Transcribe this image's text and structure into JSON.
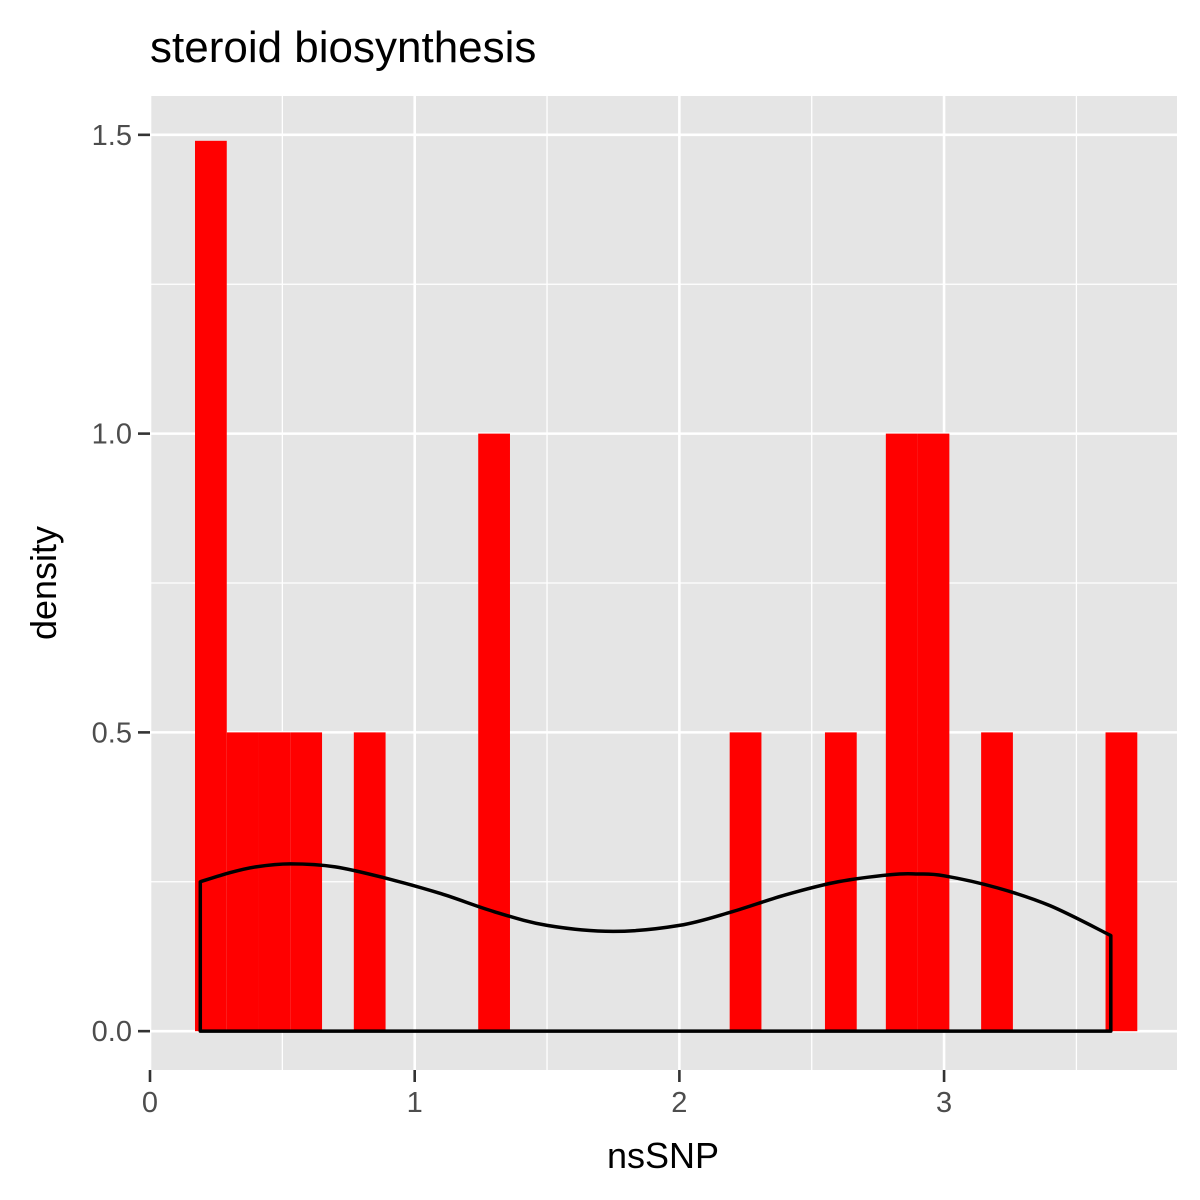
{
  "chart_data": {
    "type": "bar",
    "title": "steroid biosynthesis",
    "xlabel": "nsSNP",
    "ylabel": "density",
    "xlim": [
      0,
      3.88
    ],
    "ylim": [
      -0.065,
      1.565
    ],
    "x_ticks": [
      0,
      1,
      2,
      3
    ],
    "x_tick_labels": [
      "0",
      "1",
      "2",
      "3"
    ],
    "y_ticks": [
      0,
      0.5,
      1.0,
      1.5
    ],
    "y_tick_labels": [
      "0.0",
      "0.5",
      "1.0",
      "1.5"
    ],
    "grid": true,
    "colors": {
      "panel": "#e5e5e5",
      "grid": "#ffffff",
      "bar": "#ff0000",
      "density_line": "#000000",
      "tick_text": "#4d4d4d"
    },
    "bins": [
      {
        "x0": 0.17,
        "x1": 0.29,
        "density": 1.49
      },
      {
        "x0": 0.29,
        "x1": 0.41,
        "density": 0.5
      },
      {
        "x0": 0.41,
        "x1": 0.53,
        "density": 0.5
      },
      {
        "x0": 0.53,
        "x1": 0.65,
        "density": 0.5
      },
      {
        "x0": 0.77,
        "x1": 0.89,
        "density": 0.5
      },
      {
        "x0": 1.24,
        "x1": 1.36,
        "density": 1.0
      },
      {
        "x0": 2.19,
        "x1": 2.31,
        "density": 0.5
      },
      {
        "x0": 2.55,
        "x1": 2.67,
        "density": 0.5
      },
      {
        "x0": 2.78,
        "x1": 2.9,
        "density": 1.0
      },
      {
        "x0": 2.9,
        "x1": 3.02,
        "density": 1.0
      },
      {
        "x0": 3.14,
        "x1": 3.26,
        "density": 0.5
      },
      {
        "x0": 3.61,
        "x1": 3.73,
        "density": 0.5
      }
    ],
    "density_curve": {
      "x": [
        0.19,
        0.3,
        0.4,
        0.53,
        0.7,
        0.9,
        1.1,
        1.3,
        1.5,
        1.75,
        2.0,
        2.2,
        2.4,
        2.6,
        2.8,
        2.9,
        3.0,
        3.2,
        3.4,
        3.63
      ],
      "y": [
        0.25,
        0.265,
        0.275,
        0.28,
        0.275,
        0.255,
        0.23,
        0.2,
        0.177,
        0.167,
        0.177,
        0.2,
        0.228,
        0.25,
        0.262,
        0.263,
        0.26,
        0.24,
        0.21,
        0.16
      ]
    }
  }
}
